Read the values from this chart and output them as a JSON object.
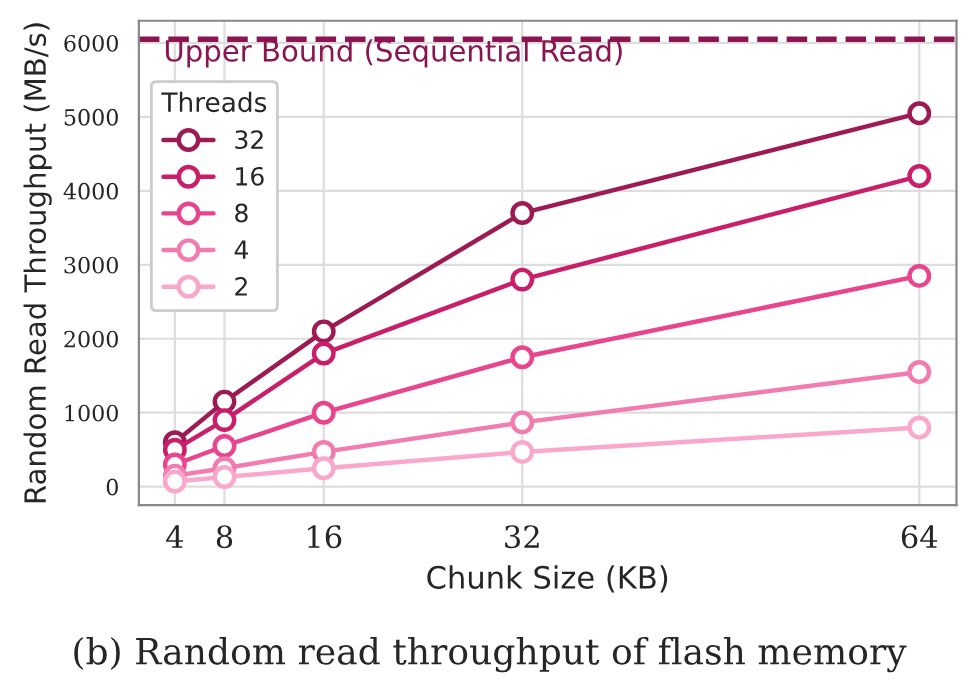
{
  "chart_data": {
    "type": "line",
    "xlabel": "Chunk Size (KB)",
    "ylabel": "Random Read Throughput (MB/s)",
    "legend_title": "Threads",
    "x": [
      4,
      8,
      16,
      32,
      64
    ],
    "series": [
      {
        "name": "32",
        "color": "#9e1a55",
        "values": [
          600,
          1150,
          2100,
          3700,
          5050
        ]
      },
      {
        "name": "16",
        "color": "#c91f6a",
        "values": [
          500,
          900,
          1800,
          2800,
          4200
        ]
      },
      {
        "name": "8",
        "color": "#e8458e",
        "values": [
          300,
          550,
          1000,
          1750,
          2850
        ]
      },
      {
        "name": "4",
        "color": "#f27cb0",
        "values": [
          150,
          250,
          470,
          870,
          1550
        ]
      },
      {
        "name": "2",
        "color": "#f9a8cc",
        "values": [
          70,
          130,
          250,
          470,
          800
        ]
      }
    ],
    "xlim": [
      1.1,
      67
    ],
    "xticks": [
      4,
      8,
      16,
      32,
      64
    ],
    "ylim": [
      -250,
      6300
    ],
    "yticks": [
      0,
      1000,
      2000,
      3000,
      4000,
      5000,
      6000
    ],
    "ref_lines": [
      {
        "axis": "y",
        "value": 6050,
        "label": "Upper Bound (Sequential Read)",
        "color": "#8a1550",
        "line_style": "dashed"
      }
    ],
    "annotations": [
      "(b) Random read throughput of flash memory"
    ],
    "grid": true,
    "legend": "top left",
    "marker": "circle",
    "line_style": "solid"
  }
}
